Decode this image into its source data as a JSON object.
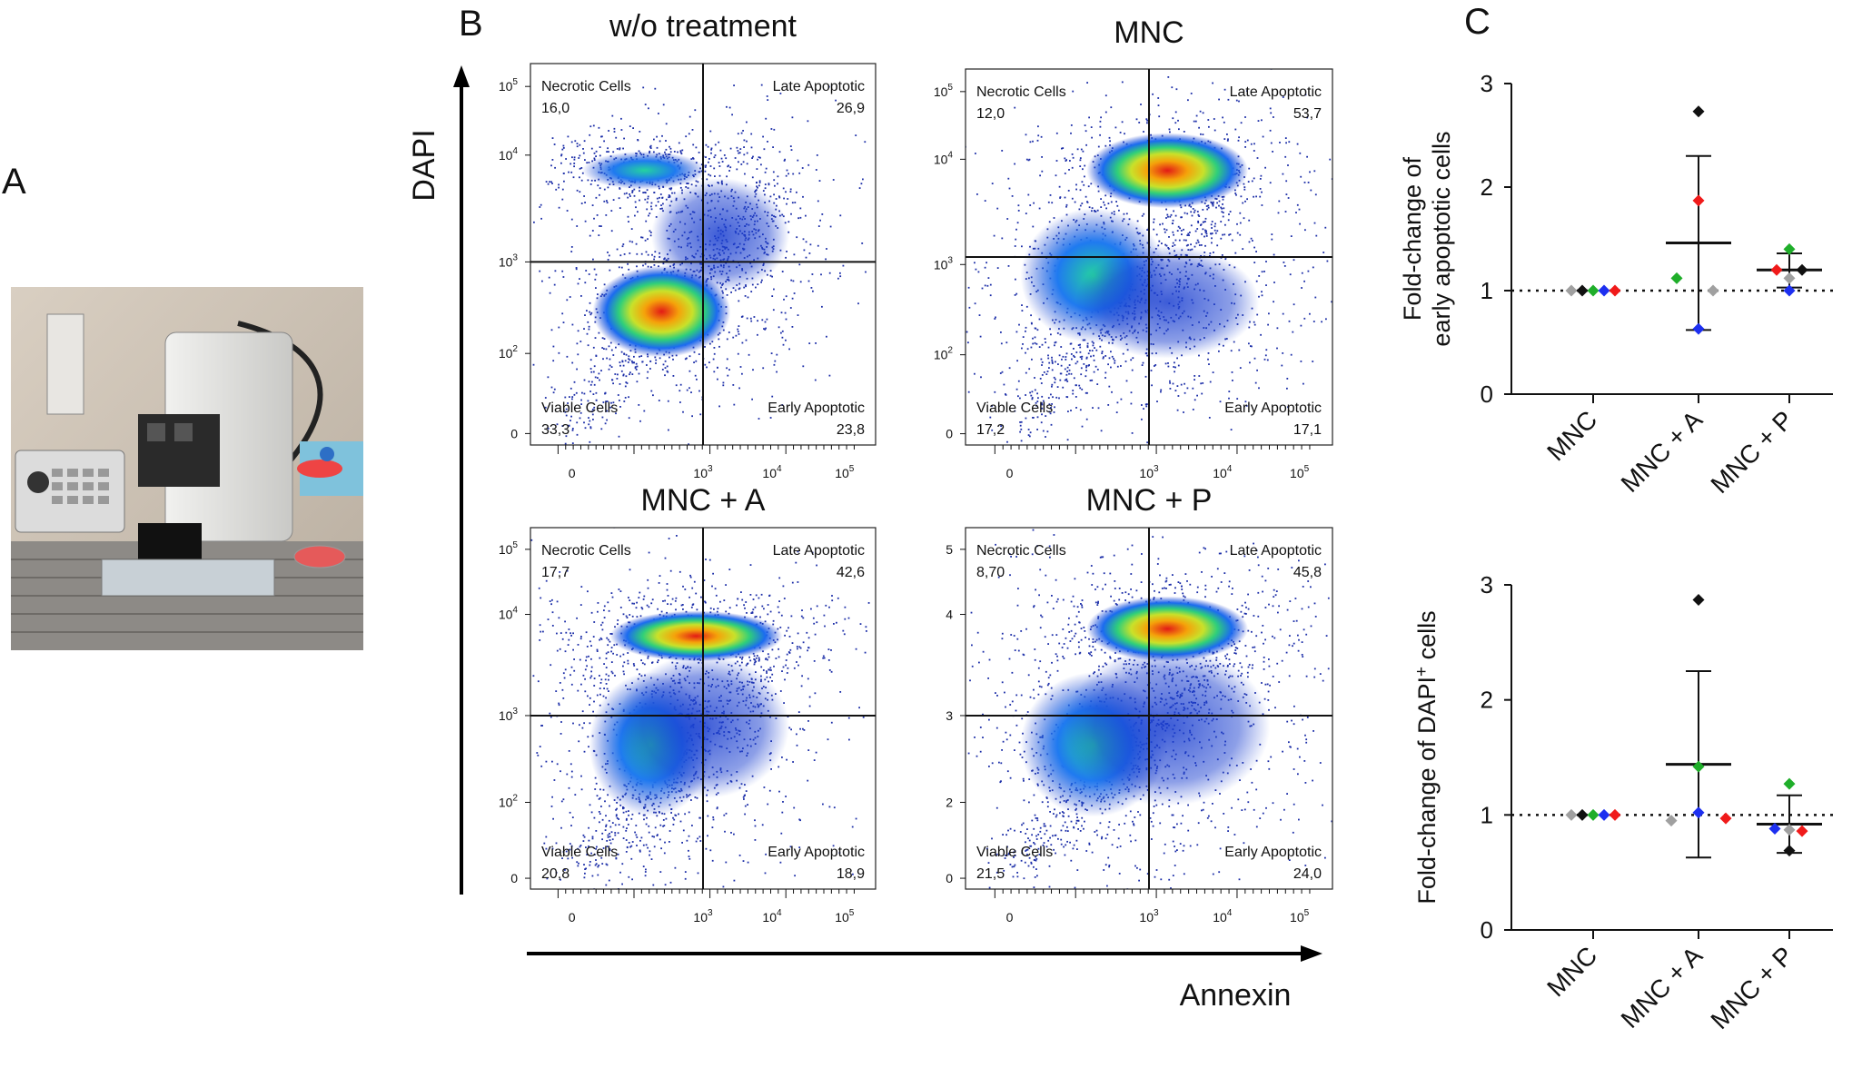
{
  "panel_letters": {
    "a": "A",
    "b": "B",
    "c": "C"
  },
  "photo": {
    "description_icon": "microtome-instrument-photo"
  },
  "flow": {
    "y_axis_label": "DAPI",
    "x_axis_label": "Annexin",
    "plots": [
      {
        "title": "w/o treatment",
        "necrotic_label": "Necrotic Cells",
        "necrotic": "16,0",
        "late_label": "Late Apoptotic",
        "late": "26,9",
        "viable_label": "Viable Cells",
        "viable": "33,3",
        "early_label": "Early Apoptotic",
        "early": "23,8",
        "y_ticks": [
          "10^5",
          "10^4",
          "10^3",
          "10^2",
          "0"
        ],
        "x_ticks": [
          "0",
          "10^3",
          "10^4",
          "10^5"
        ]
      },
      {
        "title": "MNC",
        "necrotic_label": "Necrotic Cells",
        "necrotic": "12,0",
        "late_label": "Late Apoptotic",
        "late": "53,7",
        "viable_label": "Viable Cells",
        "viable": "17,2",
        "early_label": "Early Apoptotic",
        "early": "17,1",
        "y_ticks": [
          "10^5",
          "10^4",
          "10^3",
          "10^2",
          "0"
        ],
        "x_ticks": [
          "0",
          "10^3",
          "10^4",
          "10^5"
        ]
      },
      {
        "title": "MNC + A",
        "necrotic_label": "Necrotic Cells",
        "necrotic": "17,7",
        "late_label": "Late Apoptotic",
        "late": "42,6",
        "viable_label": "Viable Cells",
        "viable": "20,8",
        "early_label": "Early Apoptotic",
        "early": "18,9",
        "y_ticks": [
          "10^5",
          "10^4",
          "10^3",
          "10^2",
          "0"
        ],
        "x_ticks": [
          "0",
          "10^3",
          "10^4",
          "10^5"
        ]
      },
      {
        "title": "MNC + P",
        "necrotic_label": "Necrotic Cells",
        "necrotic": "8,70",
        "late_label": "Late Apoptotic",
        "late": "45,8",
        "viable_label": "Viable Cells",
        "viable": "21,5",
        "early_label": "Early Apoptotic",
        "early": "24,0",
        "y_ticks": [
          "5",
          "4",
          "3",
          "2",
          "0"
        ],
        "x_ticks": [
          "0",
          "10^3",
          "10^4",
          "10^5"
        ]
      }
    ]
  },
  "colors": {
    "grey": "#a0a0a0",
    "black": "#111111",
    "green": "#1fae2a",
    "blue": "#1d2ff0",
    "red": "#f01a1a"
  },
  "chart_data": [
    {
      "type": "scatter",
      "title": "",
      "ylabel_line1": "Fold-change of",
      "ylabel_line2": "early apoptotic cells",
      "xlabel": "",
      "ylim": [
        0,
        3
      ],
      "y_ticks": [
        "0",
        "1",
        "2",
        "3"
      ],
      "reference_line": 1,
      "categories": [
        "MNC",
        "MNC + A",
        "MNC + P"
      ],
      "groups": [
        {
          "name": "MNC",
          "points": [
            {
              "value": 1.0,
              "color": "grey"
            },
            {
              "value": 1.0,
              "color": "black"
            },
            {
              "value": 1.0,
              "color": "green"
            },
            {
              "value": 1.0,
              "color": "blue"
            },
            {
              "value": 1.0,
              "color": "red"
            }
          ]
        },
        {
          "name": "MNC + A",
          "mean": 1.46,
          "sd_upper": 2.3,
          "sd_lower": 0.62,
          "points": [
            {
              "value": 2.73,
              "color": "black"
            },
            {
              "value": 1.87,
              "color": "red"
            },
            {
              "value": 1.12,
              "color": "green"
            },
            {
              "value": 1.0,
              "color": "grey"
            },
            {
              "value": 0.63,
              "color": "blue"
            }
          ]
        },
        {
          "name": "MNC + P",
          "mean": 1.2,
          "sd_upper": 1.36,
          "sd_lower": 1.03,
          "points": [
            {
              "value": 1.4,
              "color": "green"
            },
            {
              "value": 1.2,
              "color": "red"
            },
            {
              "value": 1.2,
              "color": "black"
            },
            {
              "value": 1.12,
              "color": "grey"
            },
            {
              "value": 1.0,
              "color": "blue"
            }
          ]
        }
      ]
    },
    {
      "type": "scatter",
      "title": "",
      "ylabel_line1": "Fold-change of DAPI",
      "ylabel_sup": "+",
      "ylabel_line2": " cells",
      "xlabel": "",
      "ylim": [
        0,
        3
      ],
      "y_ticks": [
        "0",
        "1",
        "2",
        "3"
      ],
      "reference_line": 1,
      "categories": [
        "MNC",
        "MNC + A",
        "MNC + P"
      ],
      "groups": [
        {
          "name": "MNC",
          "points": [
            {
              "value": 1.0,
              "color": "grey"
            },
            {
              "value": 1.0,
              "color": "black"
            },
            {
              "value": 1.0,
              "color": "green"
            },
            {
              "value": 1.0,
              "color": "blue"
            },
            {
              "value": 1.0,
              "color": "red"
            }
          ]
        },
        {
          "name": "MNC + A",
          "mean": 1.44,
          "sd_upper": 2.25,
          "sd_lower": 0.63,
          "points": [
            {
              "value": 2.87,
              "color": "black"
            },
            {
              "value": 1.42,
              "color": "green"
            },
            {
              "value": 1.02,
              "color": "blue"
            },
            {
              "value": 0.95,
              "color": "grey"
            },
            {
              "value": 0.97,
              "color": "red"
            }
          ]
        },
        {
          "name": "MNC + P",
          "mean": 0.92,
          "sd_upper": 1.17,
          "sd_lower": 0.67,
          "points": [
            {
              "value": 1.27,
              "color": "green"
            },
            {
              "value": 0.88,
              "color": "blue"
            },
            {
              "value": 0.86,
              "color": "red"
            },
            {
              "value": 0.87,
              "color": "grey"
            },
            {
              "value": 0.69,
              "color": "black"
            }
          ]
        }
      ]
    }
  ]
}
